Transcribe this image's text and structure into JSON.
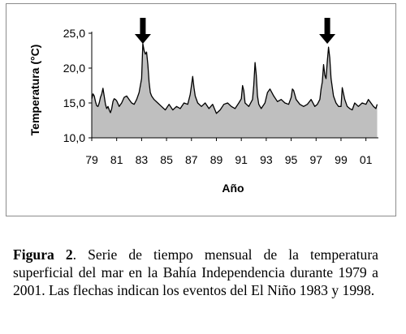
{
  "chart_data": {
    "type": "area",
    "title": "",
    "xlabel": "Año",
    "ylabel": "Temperatura (°C)",
    "ylim": [
      10,
      25
    ],
    "xlim": [
      1979,
      2002
    ],
    "y_ticks": [
      "10,0",
      "15,0",
      "20,0",
      "25,0"
    ],
    "x_ticks": [
      "79",
      "81",
      "83",
      "85",
      "87",
      "89",
      "91",
      "93",
      "95",
      "97",
      "99",
      "01"
    ],
    "fill_color": "#bfbfbf",
    "line_color": "#000000",
    "arrow_color": "#000000",
    "el_nino_arrows_at": [
      1983.1,
      1997.9
    ],
    "series": [
      {
        "x": [
          1979.0,
          1979.1,
          1979.2,
          1979.3,
          1979.4,
          1979.5,
          1979.6,
          1979.7,
          1979.8,
          1979.9,
          1980.0,
          1980.1,
          1980.2,
          1980.3,
          1980.4,
          1980.5,
          1980.6,
          1980.7,
          1980.8,
          1980.9,
          1981.0,
          1981.2,
          1981.4,
          1981.6,
          1981.8,
          1982.0,
          1982.2,
          1982.4,
          1982.6,
          1982.8,
          1983.0,
          1983.1,
          1983.2,
          1983.3,
          1983.4,
          1983.5,
          1983.6,
          1983.7,
          1983.8,
          1984.0,
          1984.3,
          1984.6,
          1984.9,
          1985.2,
          1985.5,
          1985.8,
          1986.1,
          1986.4,
          1986.7,
          1986.9,
          1987.0,
          1987.1,
          1987.2,
          1987.3,
          1987.5,
          1987.8,
          1988.1,
          1988.4,
          1988.7,
          1989.0,
          1989.3,
          1989.6,
          1989.9,
          1990.2,
          1990.5,
          1990.8,
          1991.0,
          1991.1,
          1991.2,
          1991.3,
          1991.6,
          1991.9,
          1992.0,
          1992.1,
          1992.2,
          1992.3,
          1992.4,
          1992.6,
          1992.9,
          1993.1,
          1993.3,
          1993.6,
          1993.9,
          1994.2,
          1994.5,
          1994.8,
          1995.0,
          1995.1,
          1995.2,
          1995.4,
          1995.7,
          1996.0,
          1996.3,
          1996.6,
          1996.9,
          1997.1,
          1997.3,
          1997.4,
          1997.5,
          1997.6,
          1997.7,
          1997.8,
          1997.9,
          1998.0,
          1998.1,
          1998.2,
          1998.4,
          1998.6,
          1998.8,
          1999.0,
          1999.1,
          1999.3,
          1999.5,
          1999.7,
          1999.9,
          2000.1,
          2000.4,
          2000.7,
          2001.0,
          2001.2,
          2001.4,
          2001.6,
          2001.8,
          2001.9
        ],
        "values": [
          15.6,
          16.3,
          16.0,
          15.2,
          14.6,
          14.5,
          15.0,
          15.8,
          16.3,
          17.1,
          16.0,
          14.8,
          14.2,
          14.5,
          14.0,
          13.6,
          14.2,
          15.2,
          15.6,
          15.5,
          15.3,
          14.5,
          15.0,
          15.8,
          16.0,
          15.5,
          15.0,
          14.8,
          15.5,
          16.5,
          18.5,
          23.5,
          22.5,
          22.0,
          22.3,
          20.5,
          18.0,
          16.5,
          16.0,
          15.5,
          15.0,
          14.5,
          14.0,
          14.8,
          14.0,
          14.5,
          14.2,
          15.0,
          14.8,
          16.2,
          17.5,
          18.8,
          17.2,
          16.0,
          15.0,
          14.5,
          15.0,
          14.2,
          14.8,
          13.5,
          14.0,
          14.8,
          15.0,
          14.5,
          14.2,
          15.0,
          15.6,
          17.5,
          16.8,
          15.0,
          14.5,
          15.5,
          17.5,
          20.8,
          19.0,
          16.0,
          14.8,
          14.2,
          15.0,
          16.5,
          17.0,
          16.0,
          15.2,
          15.5,
          15.0,
          14.8,
          15.8,
          17.0,
          16.8,
          15.5,
          14.8,
          14.5,
          14.8,
          15.5,
          14.5,
          14.8,
          15.5,
          17.0,
          18.0,
          20.5,
          19.0,
          18.5,
          21.0,
          23.0,
          21.5,
          18.5,
          16.0,
          15.0,
          14.5,
          14.5,
          17.2,
          15.5,
          14.5,
          14.2,
          14.0,
          15.0,
          14.5,
          15.0,
          14.8,
          15.5,
          15.0,
          14.5,
          14.2,
          14.8
        ]
      }
    ]
  },
  "caption": {
    "lead": "Figura 2",
    "text": ". Serie de tiempo mensual de la temperatura superficial del mar en la Bahía Independencia durante 1979 a 2001. Las flechas indican los eventos del El Niño 1983 y 1998."
  }
}
